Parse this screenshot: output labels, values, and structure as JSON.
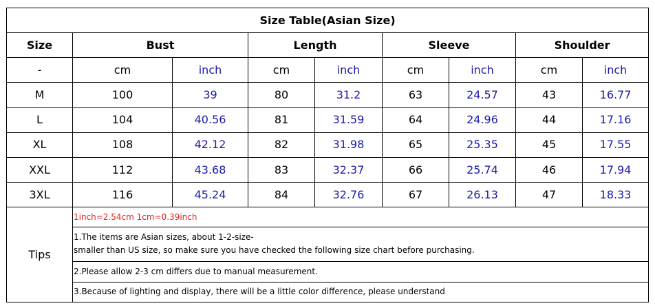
{
  "title": "Size Table(Asian Size)",
  "headers": {
    "size": "Size",
    "groups": [
      "Bust",
      "Length",
      "Sleeve",
      "Shoulder"
    ]
  },
  "units": {
    "size": "-",
    "cm": "cm",
    "inch": "inch"
  },
  "rows": [
    {
      "size": "M",
      "values": [
        "100",
        "39",
        "80",
        "31.2",
        "63",
        "24.57",
        "43",
        "16.77"
      ]
    },
    {
      "size": "L",
      "values": [
        "104",
        "40.56",
        "81",
        "31.59",
        "64",
        "24.96",
        "44",
        "17.16"
      ]
    },
    {
      "size": "XL",
      "values": [
        "108",
        "42.12",
        "82",
        "31.98",
        "65",
        "25.35",
        "45",
        "17.55"
      ]
    },
    {
      "size": "XXL",
      "values": [
        "112",
        "43.68",
        "83",
        "32.37",
        "66",
        "25.74",
        "46",
        "17.94"
      ]
    },
    {
      "size": "3XL",
      "values": [
        "116",
        "45.24",
        "84",
        "32.76",
        "67",
        "26.13",
        "47",
        "18.33"
      ]
    }
  ],
  "tips": {
    "label": "Tips",
    "conversion": "1inch=2.54cm 1cm=0.39inch",
    "note1_line1": "1.The items are Asian sizes, about 1-2-size-",
    "note1_line2": "smaller than US size, so make sure you have checked the following size chart before purchasing.",
    "note2": "2.Please allow 2-3 cm differs due to manual measurement.",
    "note3": "3.Because of lighting and display, there will be a little color difference, please understand"
  },
  "colors": {
    "inch_text": "#1a1aa8",
    "conversion_text": "#e02020",
    "border": "#000000"
  }
}
